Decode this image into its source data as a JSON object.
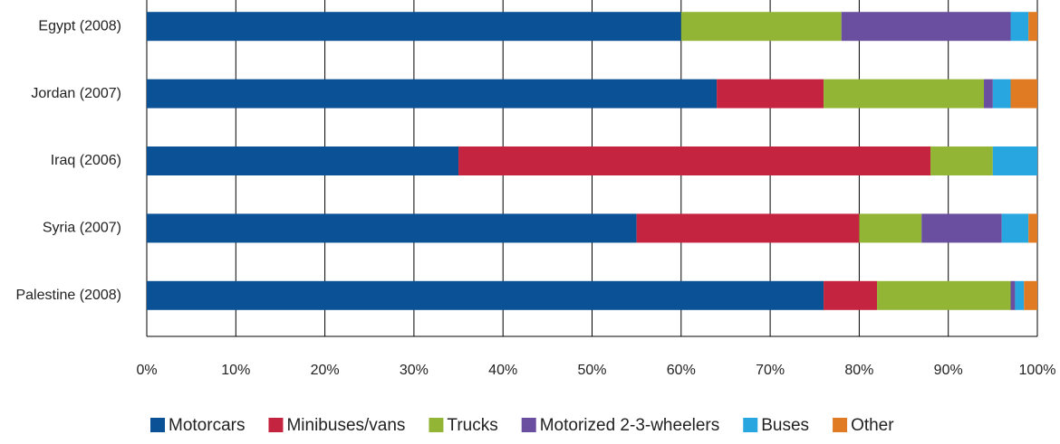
{
  "chart_data": {
    "type": "stacked-barh",
    "categories": [
      "Egypt (2008)",
      "Jordan (2007)",
      "Iraq (2006)",
      "Syria (2007)",
      "Palestine (2008)"
    ],
    "series": [
      {
        "name": "Motorcars",
        "color": "#0a5196",
        "values": [
          60,
          64,
          35,
          55,
          76
        ]
      },
      {
        "name": "Minibuses/vans",
        "color": "#c4243f",
        "values": [
          0,
          12,
          53,
          25,
          6
        ]
      },
      {
        "name": "Trucks",
        "color": "#92b535",
        "values": [
          18,
          18,
          7,
          7,
          15
        ]
      },
      {
        "name": "Motorized 2-3-wheelers",
        "color": "#6a4fa0",
        "values": [
          19,
          1,
          0,
          9,
          0.5
        ]
      },
      {
        "name": "Buses",
        "color": "#28a6df",
        "values": [
          2,
          2,
          5,
          3,
          1
        ]
      },
      {
        "name": "Other",
        "color": "#e07b24",
        "values": [
          1,
          3,
          0,
          1,
          1.5
        ]
      }
    ],
    "xlim": [
      0,
      100
    ],
    "xticks": [
      {
        "value": 0,
        "label": "0%"
      },
      {
        "value": 10,
        "label": "10%"
      },
      {
        "value": 20,
        "label": "20%"
      },
      {
        "value": 30,
        "label": "30%"
      },
      {
        "value": 40,
        "label": "40%"
      },
      {
        "value": 50,
        "label": "50%"
      },
      {
        "value": 60,
        "label": "60%"
      },
      {
        "value": 70,
        "label": "70%"
      },
      {
        "value": 80,
        "label": "80%"
      },
      {
        "value": 90,
        "label": "90%"
      },
      {
        "value": 100,
        "label": "100%"
      }
    ],
    "grid": true,
    "legend": "bottom"
  }
}
